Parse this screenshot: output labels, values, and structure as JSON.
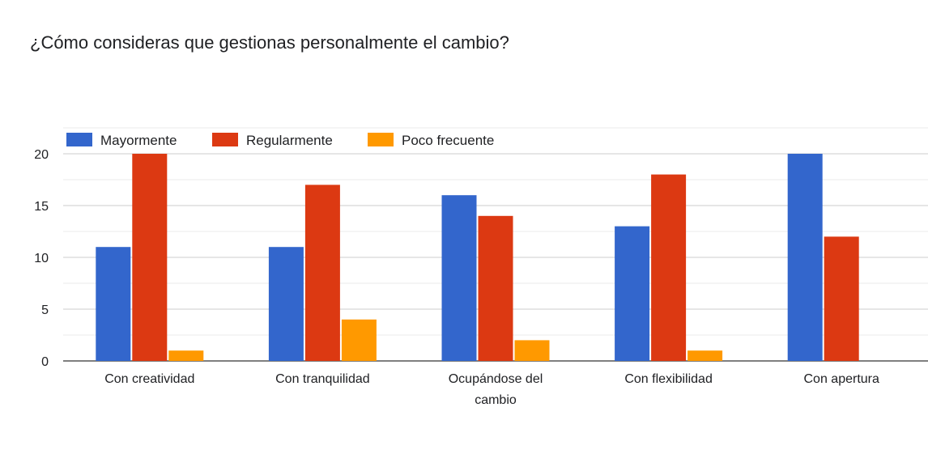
{
  "chart_data": {
    "type": "bar",
    "title": "¿Cómo consideras que gestionas personalmente el cambio?",
    "categories": [
      [
        "Con creatividad"
      ],
      [
        "Con tranquilidad"
      ],
      [
        "Ocupándose del",
        "cambio"
      ],
      [
        "Con flexibilidad"
      ],
      [
        "Con apertura"
      ]
    ],
    "series": [
      {
        "name": "Mayormente",
        "color": "#3366cc",
        "values": [
          11,
          11,
          16,
          13,
          20
        ]
      },
      {
        "name": "Regularmente",
        "color": "#dc3912",
        "values": [
          20,
          17,
          14,
          18,
          12
        ]
      },
      {
        "name": "Poco frecuente",
        "color": "#ff9900",
        "values": [
          1,
          4,
          2,
          1,
          0
        ]
      }
    ],
    "yticks": [
      0,
      5,
      10,
      15,
      20
    ],
    "ylim": [
      0,
      22.5
    ],
    "xlabel": "",
    "ylabel": "",
    "legend_position": "top-left",
    "grid": true
  }
}
